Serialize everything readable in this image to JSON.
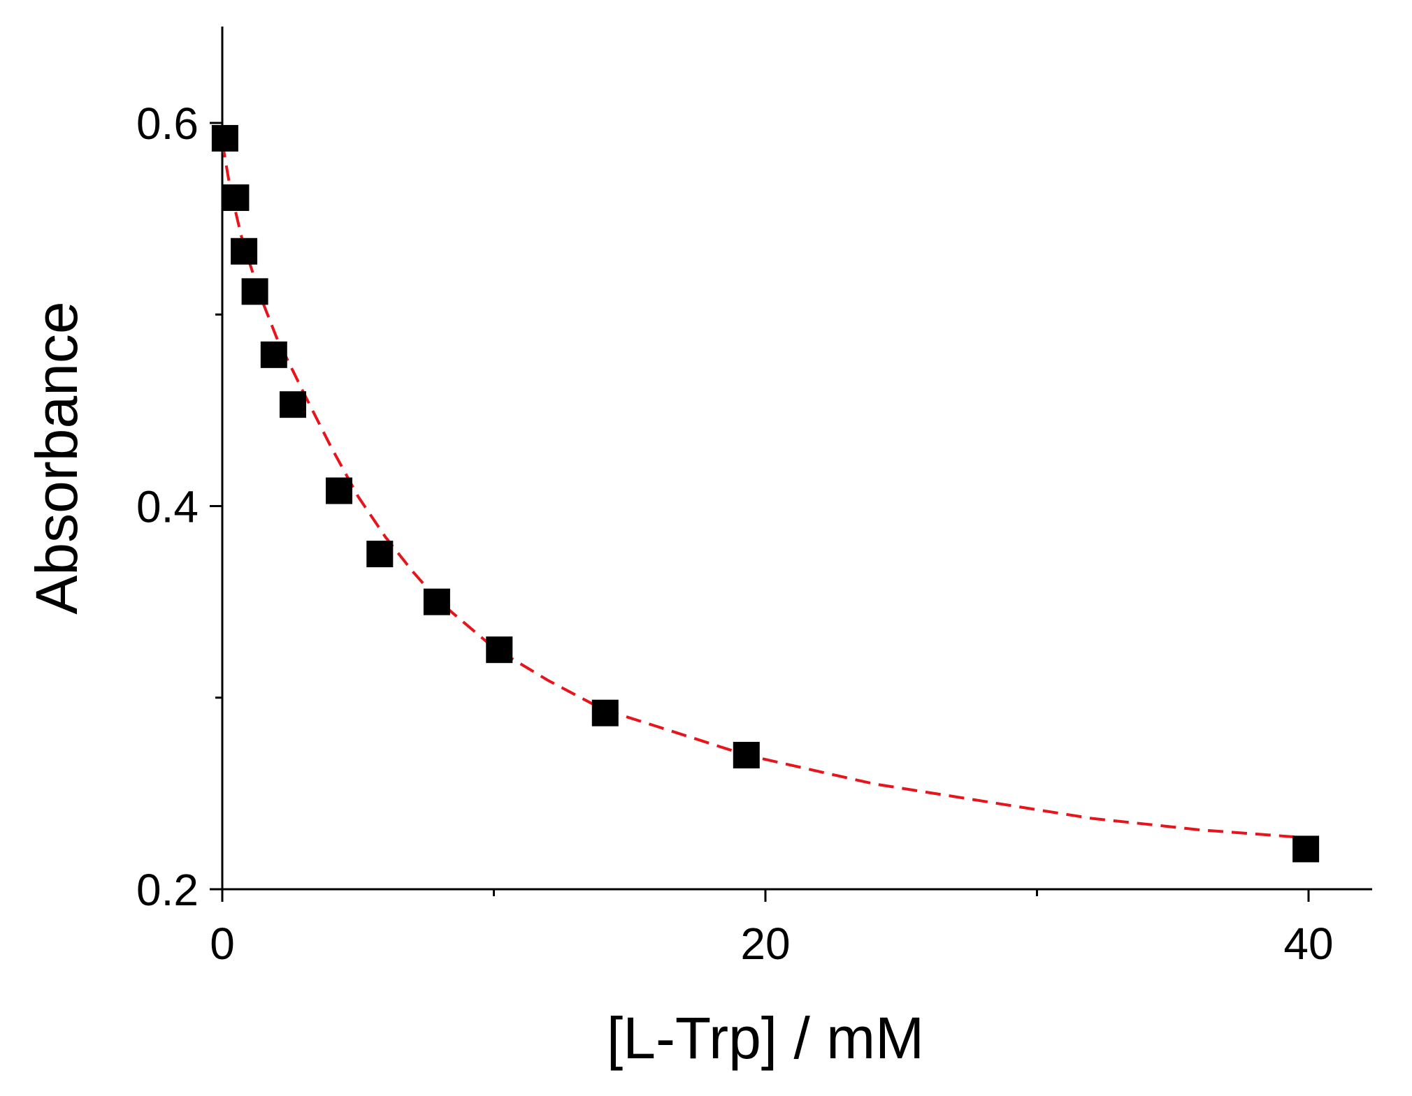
{
  "chart_data": {
    "type": "scatter",
    "xlabel": "[L-Trp] / mM",
    "ylabel": "Absorbance",
    "xlim": [
      0,
      42.5
    ],
    "ylim": [
      0.2,
      0.65
    ],
    "x_major_ticks": [
      0,
      20,
      40
    ],
    "x_major_tick_labels": [
      "0",
      "20",
      "40"
    ],
    "x_minor_ticks": [
      10,
      30
    ],
    "y_major_ticks": [
      0.2,
      0.4,
      0.6
    ],
    "y_major_tick_labels": [
      "0.2",
      "0.4",
      "0.6"
    ],
    "y_minor_ticks": [
      0.3,
      0.5
    ],
    "grid": false,
    "legend": "none",
    "colors": {
      "points": "#000000",
      "fit": "#e8141c"
    },
    "series": [
      {
        "style": "square-markers",
        "x": [
          0.1,
          0.5,
          0.8,
          1.2,
          1.9,
          2.6,
          4.3,
          5.8,
          7.9,
          10.2,
          14.1,
          19.3,
          39.9
        ],
        "y": [
          0.592,
          0.561,
          0.533,
          0.512,
          0.479,
          0.453,
          0.408,
          0.375,
          0.35,
          0.325,
          0.292,
          0.27,
          0.221
        ]
      },
      {
        "style": "dashed-fit",
        "x": [
          0,
          0.3,
          0.7,
          1.0,
          1.5,
          2.0,
          3.0,
          4.0,
          5.0,
          6.0,
          7.0,
          8.0,
          10.0,
          12.0,
          14.0,
          16.0,
          19.3,
          24.0,
          28.0,
          32.0,
          36.0,
          39.8
        ],
        "y": [
          0.59,
          0.565,
          0.541,
          0.527,
          0.506,
          0.488,
          0.459,
          0.431,
          0.405,
          0.384,
          0.366,
          0.35,
          0.326,
          0.309,
          0.294,
          0.285,
          0.27,
          0.255,
          0.246,
          0.237,
          0.231,
          0.227
        ]
      }
    ]
  }
}
